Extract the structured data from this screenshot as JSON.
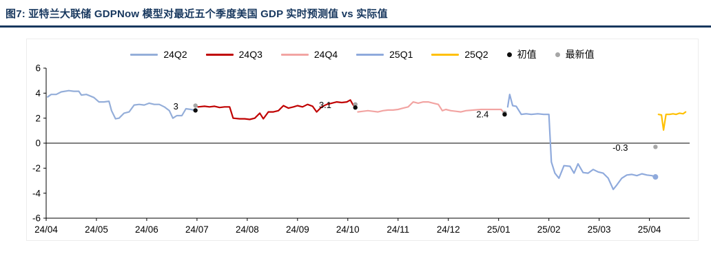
{
  "header": {
    "title": "图7:  亚特兰大联储 GDPNow 模型对最近五个季度美国 GDP 实时预测值 vs 实际值",
    "accent_color": "#17375E"
  },
  "chart_data": {
    "type": "line",
    "title": "Atlanta Fed GDPNow real-time forecasts vs actual, last five quarters of US GDP",
    "ylim": [
      -6,
      6
    ],
    "y_ticks": [
      6,
      4,
      2,
      0,
      "-2",
      "-4",
      "-6"
    ],
    "y_tick_values": [
      6,
      4,
      2,
      0,
      -2,
      -4,
      -6
    ],
    "x_ticks": [
      "24/04",
      "24/05",
      "24/06",
      "24/07",
      "24/08",
      "24/09",
      "24/10",
      "24/11",
      "24/12",
      "25/01",
      "25/02",
      "25/03",
      "25/04"
    ],
    "x_range_months": [
      0,
      12.8
    ],
    "grid": false,
    "legend_position": "top",
    "legend": [
      {
        "label": "24Q2",
        "color": "#94AED9",
        "type": "line"
      },
      {
        "label": "24Q3",
        "color": "#C00000",
        "type": "line"
      },
      {
        "label": "24Q4",
        "color": "#F2A4A2",
        "type": "line"
      },
      {
        "label": "25Q1",
        "color": "#8FAADC",
        "type": "line"
      },
      {
        "label": "25Q2",
        "color": "#FFC000",
        "type": "line"
      },
      {
        "label": "初值",
        "color": "#0D0D0D",
        "type": "dot"
      },
      {
        "label": "最新值",
        "color": "#A6A6A6",
        "type": "dot"
      }
    ],
    "series": [
      {
        "name": "24Q2",
        "color": "#94AED9",
        "points": [
          [
            0.03,
            3.7
          ],
          [
            0.1,
            3.9
          ],
          [
            0.2,
            3.9
          ],
          [
            0.3,
            4.1
          ],
          [
            0.45,
            4.2
          ],
          [
            0.55,
            4.15
          ],
          [
            0.65,
            4.15
          ],
          [
            0.7,
            3.85
          ],
          [
            0.8,
            3.9
          ],
          [
            0.95,
            3.65
          ],
          [
            1.05,
            3.3
          ],
          [
            1.15,
            3.3
          ],
          [
            1.25,
            3.35
          ],
          [
            1.3,
            2.6
          ],
          [
            1.38,
            1.95
          ],
          [
            1.45,
            2.0
          ],
          [
            1.55,
            2.4
          ],
          [
            1.65,
            2.5
          ],
          [
            1.75,
            3.05
          ],
          [
            1.85,
            3.1
          ],
          [
            1.95,
            3.05
          ],
          [
            2.05,
            3.2
          ],
          [
            2.15,
            3.1
          ],
          [
            2.25,
            3.1
          ],
          [
            2.35,
            2.9
          ],
          [
            2.45,
            2.6
          ],
          [
            2.52,
            2.0
          ],
          [
            2.6,
            2.2
          ],
          [
            2.7,
            2.2
          ],
          [
            2.78,
            2.75
          ],
          [
            2.88,
            2.7
          ],
          [
            2.97,
            2.62
          ]
        ]
      },
      {
        "name": "24Q3",
        "color": "#C00000",
        "points": [
          [
            3.02,
            2.9
          ],
          [
            3.15,
            2.95
          ],
          [
            3.25,
            2.9
          ],
          [
            3.35,
            2.95
          ],
          [
            3.45,
            2.85
          ],
          [
            3.55,
            2.9
          ],
          [
            3.65,
            2.9
          ],
          [
            3.72,
            2.0
          ],
          [
            3.85,
            1.95
          ],
          [
            3.95,
            1.95
          ],
          [
            4.05,
            1.9
          ],
          [
            4.15,
            2.0
          ],
          [
            4.25,
            2.4
          ],
          [
            4.32,
            1.95
          ],
          [
            4.42,
            2.5
          ],
          [
            4.52,
            2.5
          ],
          [
            4.62,
            2.6
          ],
          [
            4.72,
            3.0
          ],
          [
            4.82,
            2.8
          ],
          [
            4.92,
            2.9
          ],
          [
            5.0,
            3.0
          ],
          [
            5.1,
            2.9
          ],
          [
            5.2,
            3.1
          ],
          [
            5.3,
            2.95
          ],
          [
            5.38,
            2.5
          ],
          [
            5.48,
            2.9
          ],
          [
            5.58,
            3.1
          ],
          [
            5.68,
            3.2
          ],
          [
            5.78,
            3.3
          ],
          [
            5.88,
            3.25
          ],
          [
            5.98,
            3.3
          ],
          [
            6.05,
            3.45
          ],
          [
            6.1,
            3.1
          ],
          [
            6.15,
            2.85
          ]
        ]
      },
      {
        "name": "24Q4",
        "color": "#F2A4A2",
        "points": [
          [
            6.2,
            2.5
          ],
          [
            6.3,
            2.55
          ],
          [
            6.4,
            2.6
          ],
          [
            6.5,
            2.55
          ],
          [
            6.6,
            2.5
          ],
          [
            6.7,
            2.6
          ],
          [
            6.8,
            2.65
          ],
          [
            6.9,
            2.65
          ],
          [
            7.0,
            2.7
          ],
          [
            7.1,
            2.8
          ],
          [
            7.2,
            2.9
          ],
          [
            7.3,
            3.3
          ],
          [
            7.4,
            3.2
          ],
          [
            7.5,
            3.3
          ],
          [
            7.6,
            3.3
          ],
          [
            7.7,
            3.2
          ],
          [
            7.8,
            3.1
          ],
          [
            7.88,
            2.6
          ],
          [
            7.95,
            2.7
          ],
          [
            8.05,
            2.6
          ],
          [
            8.15,
            2.55
          ],
          [
            8.25,
            2.5
          ],
          [
            8.35,
            2.6
          ],
          [
            8.5,
            2.65
          ],
          [
            8.65,
            2.7
          ],
          [
            8.8,
            2.7
          ],
          [
            8.95,
            2.7
          ],
          [
            9.05,
            2.7
          ],
          [
            9.12,
            2.35
          ]
        ]
      },
      {
        "name": "25Q1",
        "color": "#8FAADC",
        "points": [
          [
            9.18,
            2.9
          ],
          [
            9.22,
            3.9
          ],
          [
            9.28,
            3.0
          ],
          [
            9.35,
            2.95
          ],
          [
            9.45,
            2.3
          ],
          [
            9.55,
            2.35
          ],
          [
            9.65,
            2.3
          ],
          [
            9.78,
            2.35
          ],
          [
            9.9,
            2.3
          ],
          [
            10.0,
            2.3
          ],
          [
            10.05,
            -1.5
          ],
          [
            10.12,
            -2.4
          ],
          [
            10.2,
            -2.8
          ],
          [
            10.3,
            -1.8
          ],
          [
            10.42,
            -1.85
          ],
          [
            10.5,
            -2.4
          ],
          [
            10.58,
            -1.65
          ],
          [
            10.68,
            -2.35
          ],
          [
            10.78,
            -2.4
          ],
          [
            10.88,
            -2.1
          ],
          [
            10.98,
            -2.3
          ],
          [
            11.08,
            -2.4
          ],
          [
            11.18,
            -2.8
          ],
          [
            11.28,
            -3.7
          ],
          [
            11.35,
            -3.35
          ],
          [
            11.45,
            -2.8
          ],
          [
            11.55,
            -2.55
          ],
          [
            11.65,
            -2.5
          ],
          [
            11.75,
            -2.6
          ],
          [
            11.85,
            -2.45
          ],
          [
            11.95,
            -2.55
          ],
          [
            12.05,
            -2.6
          ],
          [
            12.12,
            -2.7
          ]
        ]
      },
      {
        "name": "25Q2",
        "color": "#FFC000",
        "points": [
          [
            12.18,
            2.3
          ],
          [
            12.24,
            2.25
          ],
          [
            12.28,
            1.05
          ],
          [
            12.33,
            2.3
          ],
          [
            12.4,
            2.3
          ],
          [
            12.47,
            2.35
          ],
          [
            12.53,
            2.3
          ],
          [
            12.6,
            2.4
          ],
          [
            12.67,
            2.35
          ],
          [
            12.72,
            2.5
          ]
        ]
      }
    ],
    "markers": [
      {
        "name": "latest-24Q2",
        "x": 2.97,
        "y": 3.0,
        "color": "#A6A6A6",
        "r": 3.2
      },
      {
        "name": "initial-24Q2",
        "x": 2.97,
        "y": 2.62,
        "color": "#0D0D0D",
        "r": 3.2
      },
      {
        "name": "latest-24Q3",
        "x": 6.15,
        "y": 3.1,
        "color": "#A6A6A6",
        "r": 3.2
      },
      {
        "name": "initial-24Q3",
        "x": 6.15,
        "y": 2.85,
        "color": "#0D0D0D",
        "r": 3.2
      },
      {
        "name": "latest-24Q4",
        "x": 9.12,
        "y": 2.42,
        "color": "#A6A6A6",
        "r": 3.2
      },
      {
        "name": "initial-24Q4",
        "x": 9.12,
        "y": 2.3,
        "color": "#0D0D0D",
        "r": 3.2
      },
      {
        "name": "forecast-end-25Q1",
        "x": 12.12,
        "y": -2.7,
        "color": "#8FAADC",
        "r": 4
      },
      {
        "name": "actual-25Q1",
        "x": 12.12,
        "y": -0.3,
        "color": "#A6A6A6",
        "r": 3.2
      }
    ],
    "annotations": [
      {
        "x": 2.58,
        "y": 2.95,
        "text": "3"
      },
      {
        "x": 5.55,
        "y": 3.05,
        "text": "3.1"
      },
      {
        "x": 8.68,
        "y": 2.3,
        "text": "2.4"
      },
      {
        "x": 11.42,
        "y": -0.35,
        "text": "-0.3"
      }
    ]
  }
}
